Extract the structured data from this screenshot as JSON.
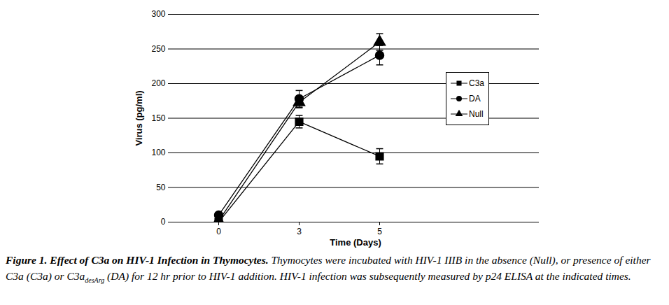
{
  "chart_data": {
    "type": "line",
    "title": "Figure 1. Effect of C3a on HIV-1 Infection in Thymocytes.",
    "caption": {
      "before": "Thymocytes were incubated with HIV-1 IIIB in the absence (Null), or presence of either C3a (C3a) or C3a",
      "subscript": "desArg",
      "after": " (DA) for 12 hr prior to HIV-1 addition. HIV-1 infection was subsequently measured by p24 ELISA at the indicated times."
    },
    "x_label": "Time (Days)",
    "y_label": "Virus (pg/ml)",
    "categories": [
      0,
      3,
      5
    ],
    "series": [
      {
        "name": "C3a",
        "color": "#000000",
        "marker": "square",
        "values": [
          0,
          145,
          95
        ],
        "errors": [
          0,
          9,
          11
        ]
      },
      {
        "name": "DA",
        "color": "#000000",
        "marker": "circle",
        "values": [
          10,
          178,
          241
        ],
        "errors": [
          0,
          12,
          14
        ]
      },
      {
        "name": "Null",
        "color": "#000000",
        "marker": "triangle",
        "values": [
          2,
          173,
          260
        ],
        "errors": [
          0,
          8,
          12
        ]
      }
    ],
    "ylim": [
      0,
      300
    ],
    "yticks": [
      0,
      50,
      100,
      150,
      200,
      250,
      300
    ],
    "grid": true,
    "legend": "right"
  }
}
